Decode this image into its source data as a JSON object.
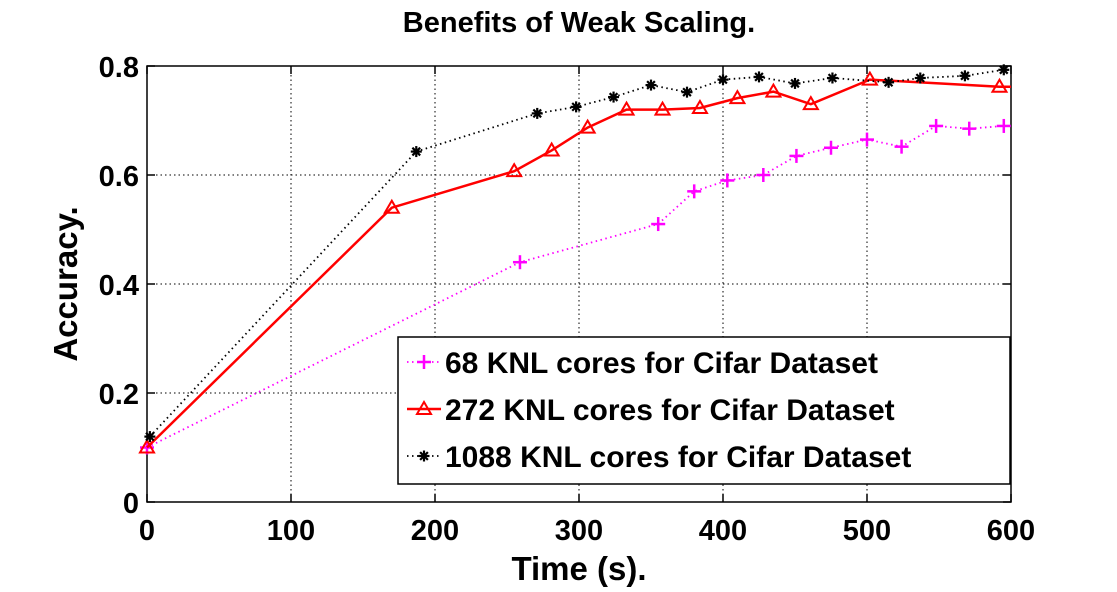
{
  "chart_data": {
    "type": "line",
    "title": "Benefits of Weak Scaling.",
    "xlabel": "Time (s).",
    "ylabel": "Accuracy.",
    "xlim": [
      0,
      600
    ],
    "ylim": [
      0,
      0.8
    ],
    "xticks": [
      "0",
      "100",
      "200",
      "300",
      "400",
      "500",
      "600"
    ],
    "yticks": [
      "0",
      "0.2",
      "0.4",
      "0.6",
      "0.8"
    ],
    "grid": true,
    "legend_position": "bottom-right",
    "series": [
      {
        "name": "68 KNL cores for Cifar Dataset",
        "color": "#ff00ff",
        "line_style": "dotted",
        "marker": "plus",
        "x": [
          0,
          259,
          355,
          380,
          403,
          428,
          451,
          475,
          500,
          524,
          548,
          571,
          595
        ],
        "y": [
          0.1,
          0.44,
          0.51,
          0.57,
          0.59,
          0.6,
          0.635,
          0.65,
          0.665,
          0.652,
          0.69,
          0.685,
          0.69
        ]
      },
      {
        "name": "272 KNL cores for Cifar Dataset",
        "color": "#ff0000",
        "line_style": "solid",
        "marker": "triangle",
        "x": [
          0,
          170,
          255,
          281,
          306,
          333,
          358,
          384,
          410,
          435,
          461,
          502,
          592,
          600
        ],
        "y": [
          0.1,
          0.54,
          0.607,
          0.645,
          0.687,
          0.72,
          0.72,
          0.723,
          0.741,
          0.753,
          0.73,
          0.775,
          0.762,
          0.762
        ]
      },
      {
        "name": "1088 KNL cores for Cifar Dataset",
        "color": "#000000",
        "line_style": "dotted",
        "marker": "asterisk",
        "x": [
          2,
          187,
          271,
          298,
          324,
          350,
          375,
          400,
          425,
          450,
          476,
          515,
          537,
          568,
          595,
          600
        ],
        "y": [
          0.12,
          0.643,
          0.713,
          0.725,
          0.743,
          0.765,
          0.752,
          0.775,
          0.78,
          0.768,
          0.778,
          0.77,
          0.778,
          0.782,
          0.793,
          0.793
        ]
      }
    ]
  }
}
